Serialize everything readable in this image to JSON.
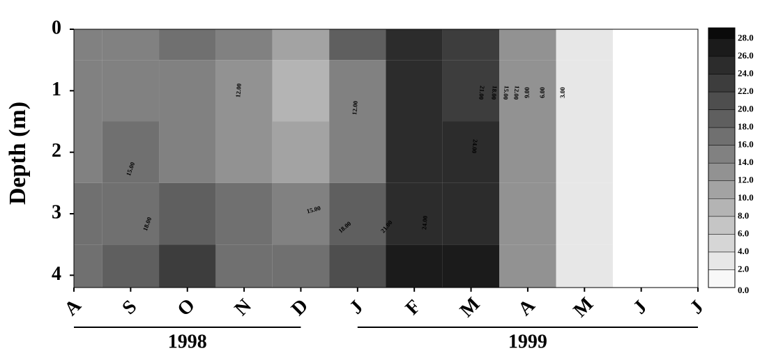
{
  "chart_data": {
    "type": "contour",
    "y_label": "Depth (m)",
    "categories": [
      "A",
      "S",
      "O",
      "N",
      "D",
      "J",
      "F",
      "M",
      "A",
      "M",
      "J",
      "J"
    ],
    "depths": [
      0,
      1,
      2,
      3,
      4
    ],
    "z": [
      [
        15,
        15,
        15,
        16,
        16
      ],
      [
        15,
        15,
        16,
        17,
        18
      ],
      [
        16,
        14,
        15,
        19,
        23
      ],
      [
        14,
        12,
        13,
        16,
        17
      ],
      [
        10,
        9,
        10,
        15,
        16
      ],
      [
        19,
        14,
        15,
        18,
        20
      ],
      [
        24,
        24,
        25,
        25,
        27
      ],
      [
        22,
        22,
        24,
        25,
        26
      ],
      [
        12,
        12,
        12,
        12,
        13
      ],
      [
        2,
        2,
        2,
        2,
        2
      ],
      [
        null,
        null,
        null,
        null,
        null
      ],
      [
        null,
        null,
        null,
        null,
        null
      ]
    ],
    "ylim": [
      0,
      4.2
    ],
    "yticks": [
      0,
      1,
      2,
      3,
      4
    ],
    "year_groups": [
      "1998",
      "1999"
    ],
    "contour_labels": [
      "12.00",
      "12.00",
      "15.00",
      "18.00",
      "15.00",
      "18.00",
      "21.00",
      "24.00",
      "24.00",
      "21.00",
      "18.00",
      "15.00",
      "12.00",
      "9.00",
      "6.00",
      "3.00"
    ],
    "colorbar": {
      "lim": [
        0,
        29.2
      ],
      "ticks": [
        {
          "value": 0,
          "label": "0.0"
        },
        {
          "value": 2,
          "label": "2.0"
        },
        {
          "value": 4,
          "label": "4.0"
        },
        {
          "value": 6,
          "label": "6.0"
        },
        {
          "value": 8,
          "label": "8.0"
        },
        {
          "value": 10,
          "label": "10.0"
        },
        {
          "value": 12,
          "label": "12.0"
        },
        {
          "value": 14,
          "label": "14.0"
        },
        {
          "value": 16,
          "label": "16.0"
        },
        {
          "value": 18,
          "label": "18.0"
        },
        {
          "value": 20,
          "label": "20.0"
        },
        {
          "value": 22,
          "label": "22.0"
        },
        {
          "value": 24,
          "label": "24.0"
        },
        {
          "value": 26,
          "label": "26.0"
        },
        {
          "value": 28,
          "label": "28.0"
        }
      ]
    }
  }
}
